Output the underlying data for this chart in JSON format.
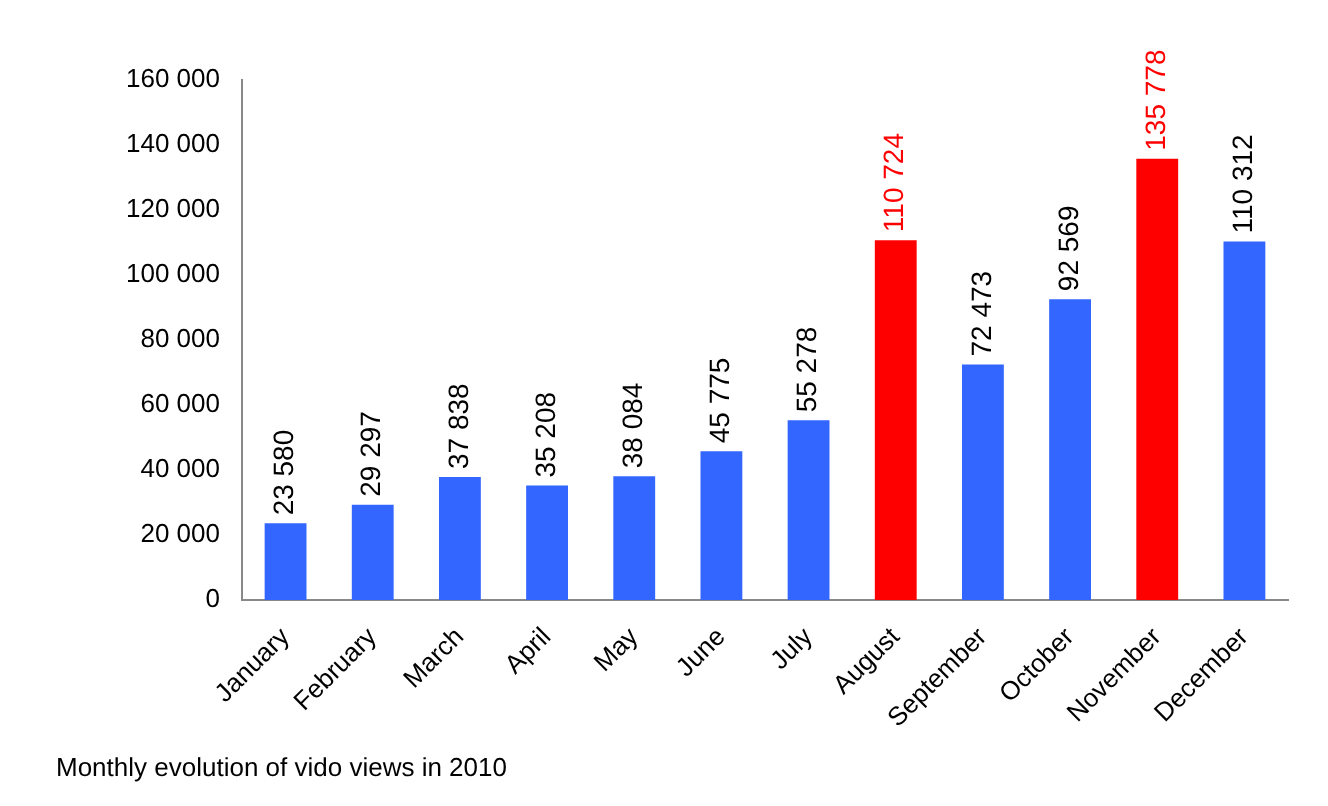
{
  "chart_data": {
    "type": "bar",
    "categories": [
      "January",
      "February",
      "March",
      "April",
      "May",
      "June",
      "July",
      "August",
      "September",
      "October",
      "November",
      "December"
    ],
    "values": [
      23580,
      29297,
      37838,
      35208,
      38084,
      45775,
      55278,
      110724,
      72473,
      92569,
      135778,
      110312
    ],
    "colors": [
      "#3366ff",
      "#3366ff",
      "#3366ff",
      "#3366ff",
      "#3366ff",
      "#3366ff",
      "#3366ff",
      "#ff0000",
      "#3366ff",
      "#3366ff",
      "#ff0000",
      "#3366ff"
    ],
    "value_labels": [
      "23 580",
      "29 297",
      "37 838",
      "35 208",
      "38 084",
      "45 775",
      "55 278",
      "110 724",
      "72 473",
      "92 569",
      "135 778",
      "110 312"
    ],
    "ylim": [
      0,
      160000
    ],
    "yticks": [
      {
        "value": 0,
        "label": "0"
      },
      {
        "value": 20000,
        "label": "20 000"
      },
      {
        "value": 40000,
        "label": "40 000"
      },
      {
        "value": 60000,
        "label": "60 000"
      },
      {
        "value": 80000,
        "label": "80 000"
      },
      {
        "value": 100000,
        "label": "100 000"
      },
      {
        "value": 120000,
        "label": "120 000"
      },
      {
        "value": 140000,
        "label": "140 000"
      },
      {
        "value": 160000,
        "label": "160 000"
      }
    ],
    "grid": false,
    "legend": false,
    "annotations": [
      "Monthly evolution of vido views in 2010"
    ]
  }
}
